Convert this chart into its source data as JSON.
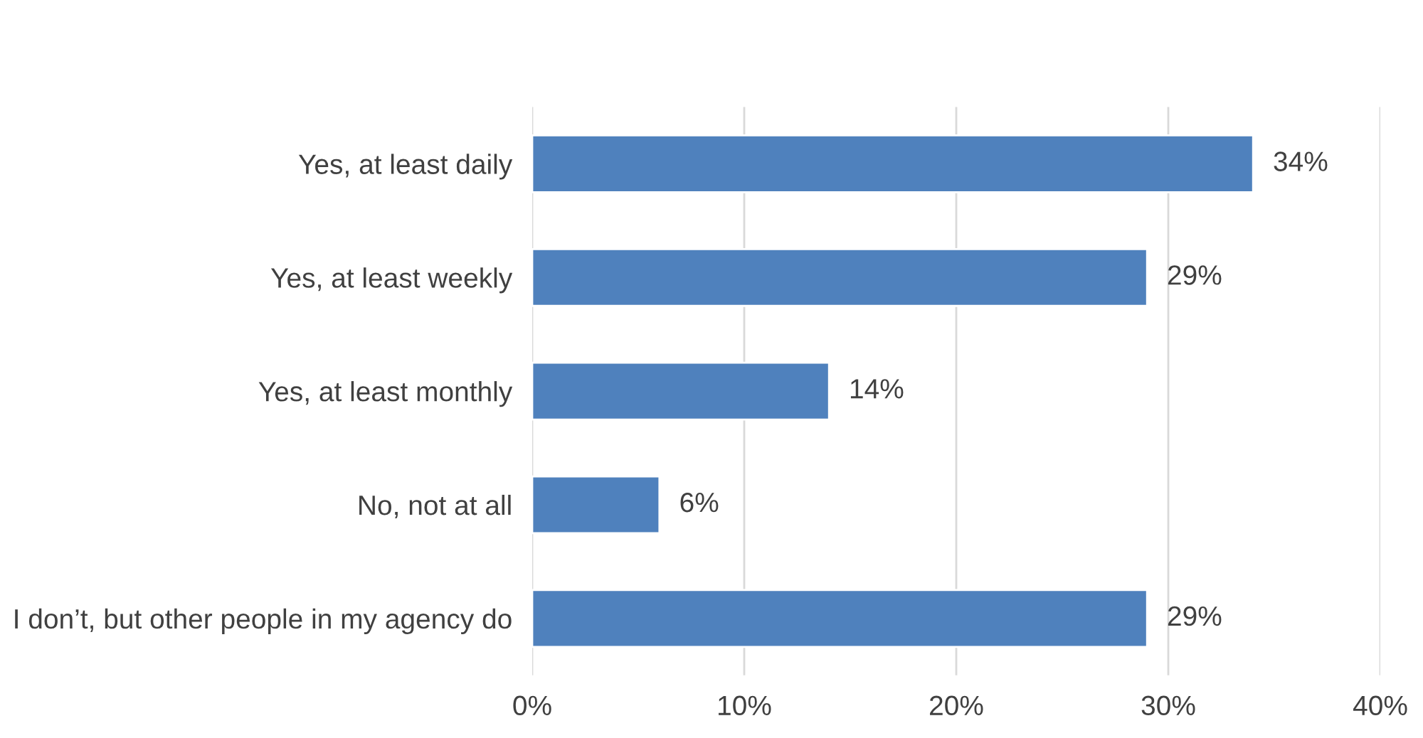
{
  "chart_data": {
    "type": "bar",
    "orientation": "horizontal",
    "categories": [
      "Yes, at least daily",
      "Yes, at least weekly",
      "Yes, at least monthly",
      "No, not at all",
      "I don’t, but other people in my agency do"
    ],
    "values": [
      34,
      29,
      14,
      6,
      29
    ],
    "value_labels": [
      "34%",
      "29%",
      "14%",
      "6%",
      "29%"
    ],
    "color": "#4f81bd",
    "xlim": [
      0,
      40
    ],
    "xticks": [
      {
        "value": 0,
        "label": "0%"
      },
      {
        "value": 10,
        "label": "10%"
      },
      {
        "value": 20,
        "label": "20%"
      },
      {
        "value": 30,
        "label": "30%"
      },
      {
        "value": 40,
        "label": "40%"
      }
    ],
    "grid": "x"
  }
}
